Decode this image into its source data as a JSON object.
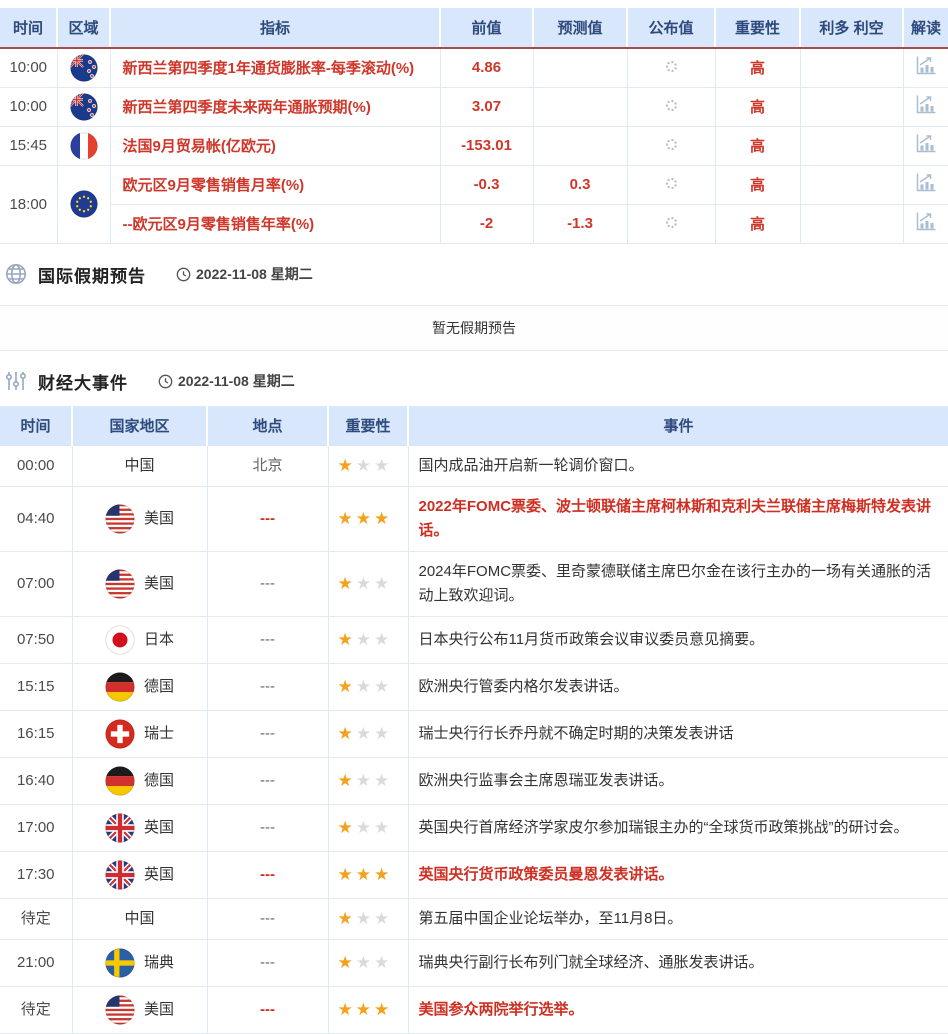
{
  "colors": {
    "accent_red": "#cf372a",
    "event_red": "#cf2f22",
    "header_bg": "#d8e7fb",
    "header_text": "#2e4a7d",
    "header_divider_red": "#a84a4a",
    "star_gold": "#f3a21b",
    "star_gray": "#d8dbde"
  },
  "indicator_section": {
    "headers": {
      "time": "时间",
      "region": "区域",
      "indicator": "指标",
      "previous": "前值",
      "forecast": "预测值",
      "published": "公布值",
      "importance": "重要性",
      "bull_bear": "利多 利空",
      "interpret": "解读"
    },
    "published_state": "loading-spinner",
    "interpret_icon": "chart-icon",
    "rows": [
      {
        "time": "10:00",
        "flag": "nz",
        "indicator": "新西兰第四季度1年通货膨胀率-每季滚动(%)",
        "previous": "4.86",
        "forecast": "",
        "importance": "高",
        "group": "single"
      },
      {
        "time": "10:00",
        "flag": "nz",
        "indicator": "新西兰第四季度未来两年通胀预期(%)",
        "previous": "3.07",
        "forecast": "",
        "importance": "高",
        "group": "single"
      },
      {
        "time": "15:45",
        "flag": "fr",
        "indicator": "法国9月贸易帐(亿欧元)",
        "previous": "-153.01",
        "forecast": "",
        "importance": "高",
        "group": "single"
      },
      {
        "time": "18:00",
        "flag": "eu",
        "indicator": "欧元区9月零售销售月率(%)",
        "previous": "-0.3",
        "forecast": "0.3",
        "importance": "高",
        "group": "start"
      },
      {
        "time": "",
        "flag": "",
        "indicator": "--欧元区9月零售销售年率(%)",
        "previous": "-2",
        "forecast": "-1.3",
        "importance": "高",
        "group": "cont"
      }
    ]
  },
  "holiday_section": {
    "icon": "globe-icon",
    "title": "国际假期预告",
    "date_icon": "clock-icon",
    "date": "2022-11-08 星期二",
    "empty_text": "暂无假期预告"
  },
  "events_section": {
    "icon": "sliders-icon",
    "title": "财经大事件",
    "date_icon": "clock-icon",
    "date": "2022-11-08 星期二"
  },
  "events_table": {
    "headers": {
      "time": "时间",
      "country": "国家地区",
      "location": "地点",
      "importance": "重要性",
      "event": "事件"
    },
    "rows": [
      {
        "time": "00:00",
        "country": "中国",
        "flag": "",
        "location": "北京",
        "stars": 1,
        "important": false,
        "event": "国内成品油开启新一轮调价窗口。"
      },
      {
        "time": "04:40",
        "country": "美国",
        "flag": "us",
        "location": "---",
        "stars": 3,
        "important": true,
        "event": "2022年FOMC票委、波士顿联储主席柯林斯和克利夫兰联储主席梅斯特发表讲话。"
      },
      {
        "time": "07:00",
        "country": "美国",
        "flag": "us",
        "location": "---",
        "stars": 1,
        "important": false,
        "event": "2024年FOMC票委、里奇蒙德联储主席巴尔金在该行主办的一场有关通胀的活动上致欢迎词。"
      },
      {
        "time": "07:50",
        "country": "日本",
        "flag": "jp",
        "location": "---",
        "stars": 1,
        "important": false,
        "event": "日本央行公布11月货币政策会议审议委员意见摘要。"
      },
      {
        "time": "15:15",
        "country": "德国",
        "flag": "de",
        "location": "---",
        "stars": 1,
        "important": false,
        "event": "欧洲央行管委内格尔发表讲话。"
      },
      {
        "time": "16:15",
        "country": "瑞士",
        "flag": "ch",
        "location": "---",
        "stars": 1,
        "important": false,
        "event": "瑞士央行行长乔丹就不确定时期的决策发表讲话"
      },
      {
        "time": "16:40",
        "country": "德国",
        "flag": "de",
        "location": "---",
        "stars": 1,
        "important": false,
        "event": "欧洲央行监事会主席恩瑞亚发表讲话。"
      },
      {
        "time": "17:00",
        "country": "英国",
        "flag": "gb",
        "location": "---",
        "stars": 1,
        "important": false,
        "event": "英国央行首席经济学家皮尔参加瑞银主办的“全球货币政策挑战”的研讨会。"
      },
      {
        "time": "17:30",
        "country": "英国",
        "flag": "gb",
        "location": "---",
        "stars": 3,
        "important": true,
        "event": "英国央行货币政策委员曼恩发表讲话。"
      },
      {
        "time": "待定",
        "country": "中国",
        "flag": "",
        "location": "---",
        "stars": 1,
        "important": false,
        "event": "第五届中国企业论坛举办，至11月8日。"
      },
      {
        "time": "21:00",
        "country": "瑞典",
        "flag": "se",
        "location": "---",
        "stars": 1,
        "important": false,
        "event": "瑞典央行副行长布列门就全球经济、通胀发表讲话。"
      },
      {
        "time": "待定",
        "country": "美国",
        "flag": "us",
        "location": "---",
        "stars": 3,
        "important": true,
        "event": "美国参众两院举行选举。"
      }
    ]
  }
}
